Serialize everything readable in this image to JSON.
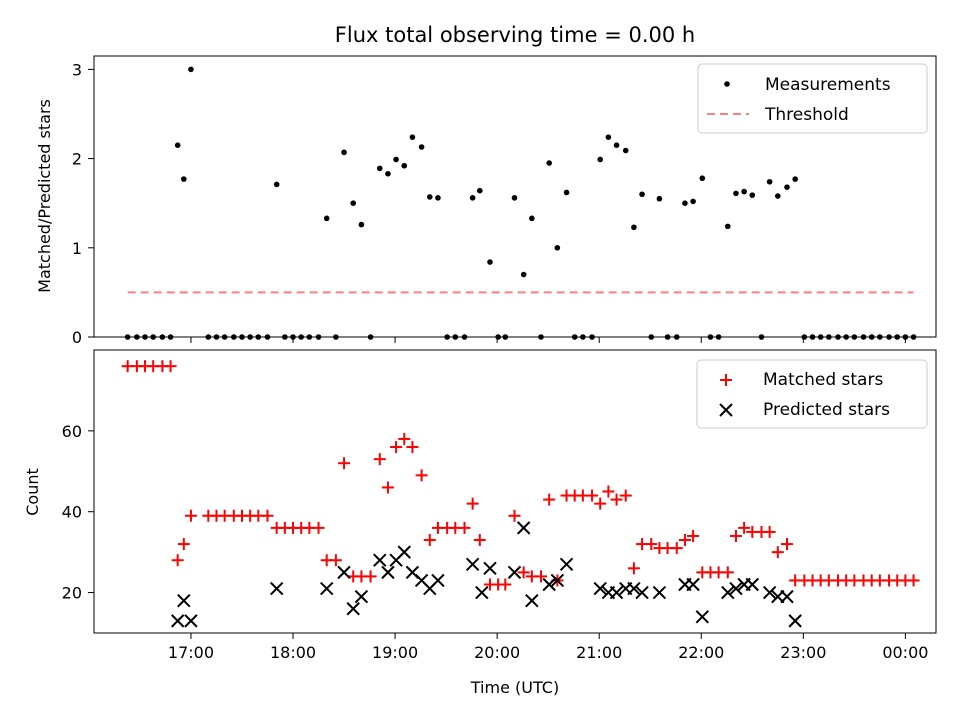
{
  "chart_data": [
    {
      "type": "scatter",
      "title": "Flux total observing time = 0.00 h",
      "xlabel": "",
      "ylabel": "Matched/Predicted stars",
      "xlim": [
        16.05,
        24.3
      ],
      "ylim": [
        0,
        3.15
      ],
      "x_ticks": [
        17,
        18,
        19,
        20,
        21,
        22,
        23,
        24
      ],
      "y_ticks": [
        0,
        1,
        2,
        3
      ],
      "y_tick_labels": [
        "0",
        "1",
        "2",
        "3"
      ],
      "legend": [
        "Measurements",
        "Threshold"
      ],
      "legend_position": "top-right",
      "series": [
        {
          "name": "Measurements",
          "kind": "scatter",
          "color": "#000000",
          "x": [
            16.38,
            16.47,
            16.55,
            16.63,
            16.72,
            16.8,
            16.87,
            16.93,
            17.0,
            17.17,
            17.25,
            17.33,
            17.42,
            17.5,
            17.58,
            17.66,
            17.75,
            17.84,
            17.92,
            18.0,
            18.08,
            18.16,
            18.25,
            18.33,
            18.42,
            18.5,
            18.59,
            18.67,
            18.76,
            18.85,
            18.93,
            19.01,
            19.09,
            19.17,
            19.26,
            19.34,
            19.42,
            19.51,
            19.59,
            19.68,
            19.76,
            19.83,
            19.93,
            20.01,
            20.08,
            20.17,
            20.26,
            20.34,
            20.43,
            20.51,
            20.59,
            20.68,
            20.76,
            20.84,
            20.93,
            21.01,
            21.09,
            21.17,
            21.26,
            21.34,
            21.42,
            21.51,
            21.59,
            21.67,
            21.76,
            21.84,
            21.92,
            22.01,
            22.09,
            22.17,
            22.26,
            22.34,
            22.42,
            22.5,
            22.59,
            22.67,
            22.75,
            22.84,
            22.92,
            23.01,
            23.09,
            23.17,
            23.25,
            23.34,
            23.42,
            23.5,
            23.59,
            23.67,
            23.75,
            23.84,
            23.92,
            24.0,
            24.08
          ],
          "y": [
            0,
            0,
            0,
            0,
            0,
            0,
            2.15,
            1.77,
            3.0,
            0,
            0,
            0,
            0,
            0,
            0,
            0,
            0,
            1.71,
            0,
            0,
            0,
            0,
            0,
            1.33,
            0,
            2.07,
            1.5,
            1.26,
            0,
            1.89,
            1.83,
            1.99,
            1.92,
            2.24,
            2.13,
            1.57,
            1.56,
            0,
            0,
            0,
            1.56,
            1.64,
            0.84,
            0,
            0,
            1.56,
            0.7,
            1.33,
            0,
            1.95,
            1.0,
            1.62,
            0,
            0,
            0,
            1.99,
            2.24,
            2.15,
            2.09,
            1.23,
            1.6,
            0,
            1.55,
            0,
            0,
            1.5,
            1.52,
            1.78,
            0,
            0,
            1.24,
            1.61,
            1.63,
            1.59,
            0,
            1.74,
            1.58,
            1.68,
            1.77,
            0,
            0,
            0,
            0,
            0,
            0,
            0,
            0,
            0,
            0,
            0,
            0,
            0,
            0
          ]
        },
        {
          "name": "Threshold",
          "kind": "line",
          "style": "dashed",
          "color": "#ff7f7f",
          "x": [
            16.38,
            24.08
          ],
          "y": [
            0.5,
            0.5
          ]
        }
      ]
    },
    {
      "type": "scatter",
      "title": "",
      "xlabel": "Time (UTC)",
      "ylabel": "Count",
      "xlim": [
        16.05,
        24.3
      ],
      "ylim": [
        10,
        80
      ],
      "x_ticks": [
        17,
        18,
        19,
        20,
        21,
        22,
        23,
        24
      ],
      "x_tick_labels": [
        "17:00",
        "18:00",
        "19:00",
        "20:00",
        "21:00",
        "22:00",
        "23:00",
        "00:00"
      ],
      "y_ticks": [
        20,
        40,
        60
      ],
      "y_tick_labels": [
        "20",
        "40",
        "60"
      ],
      "legend": [
        "Matched stars",
        "Predicted stars"
      ],
      "legend_position": "top-right",
      "series": [
        {
          "name": "Matched stars",
          "kind": "scatter",
          "marker": "+",
          "color": "#ff0000",
          "x": [
            16.38,
            16.47,
            16.55,
            16.63,
            16.72,
            16.8,
            16.87,
            16.93,
            17.0,
            17.17,
            17.25,
            17.33,
            17.42,
            17.5,
            17.58,
            17.66,
            17.75,
            17.84,
            17.92,
            18.0,
            18.08,
            18.16,
            18.25,
            18.33,
            18.42,
            18.5,
            18.59,
            18.67,
            18.76,
            18.85,
            18.93,
            19.01,
            19.09,
            19.17,
            19.26,
            19.34,
            19.42,
            19.51,
            19.59,
            19.68,
            19.76,
            19.83,
            19.93,
            20.01,
            20.08,
            20.17,
            20.26,
            20.34,
            20.43,
            20.51,
            20.59,
            20.68,
            20.76,
            20.84,
            20.93,
            21.01,
            21.09,
            21.17,
            21.26,
            21.34,
            21.42,
            21.51,
            21.59,
            21.67,
            21.76,
            21.84,
            21.92,
            22.01,
            22.09,
            22.17,
            22.26,
            22.34,
            22.42,
            22.5,
            22.59,
            22.67,
            22.75,
            22.84,
            22.92,
            23.01,
            23.09,
            23.17,
            23.25,
            23.34,
            23.42,
            23.5,
            23.59,
            23.67,
            23.75,
            23.84,
            23.92,
            24.0,
            24.08
          ],
          "y": [
            76,
            76,
            76,
            76,
            76,
            76,
            28,
            32,
            39,
            39,
            39,
            39,
            39,
            39,
            39,
            39,
            39,
            36,
            36,
            36,
            36,
            36,
            36,
            28,
            28,
            52,
            24,
            24,
            24,
            53,
            46,
            56,
            58,
            56,
            49,
            33,
            36,
            36,
            36,
            36,
            42,
            33,
            22,
            22,
            22,
            39,
            25,
            24,
            24,
            43,
            23,
            44,
            44,
            44,
            44,
            42,
            45,
            43,
            44,
            26,
            32,
            32,
            31,
            31,
            31,
            33,
            34,
            25,
            25,
            25,
            25,
            34,
            36,
            35,
            35,
            35,
            30,
            32,
            23,
            23,
            23,
            23,
            23,
            23,
            23,
            23,
            23,
            23,
            23,
            23,
            23,
            23,
            23
          ]
        },
        {
          "name": "Predicted stars",
          "kind": "scatter",
          "marker": "x",
          "color": "#000000",
          "x": [
            16.87,
            16.93,
            17.0,
            17.84,
            18.33,
            18.5,
            18.59,
            18.67,
            18.85,
            18.93,
            19.01,
            19.09,
            19.17,
            19.26,
            19.34,
            19.42,
            19.76,
            19.85,
            19.93,
            20.17,
            20.26,
            20.34,
            20.51,
            20.59,
            20.68,
            21.01,
            21.09,
            21.17,
            21.26,
            21.34,
            21.42,
            21.59,
            21.84,
            21.92,
            22.01,
            22.26,
            22.34,
            22.42,
            22.5,
            22.67,
            22.75,
            22.84,
            22.92
          ],
          "y": [
            13,
            18,
            13,
            21,
            21,
            25,
            16,
            19,
            28,
            25,
            28,
            30,
            25,
            23,
            21,
            23,
            27,
            20,
            26,
            25,
            36,
            18,
            22,
            23,
            27,
            21,
            20,
            20,
            21,
            21,
            20,
            20,
            22,
            22,
            14,
            20,
            21,
            22,
            22,
            20,
            19,
            19,
            13
          ]
        }
      ]
    }
  ]
}
